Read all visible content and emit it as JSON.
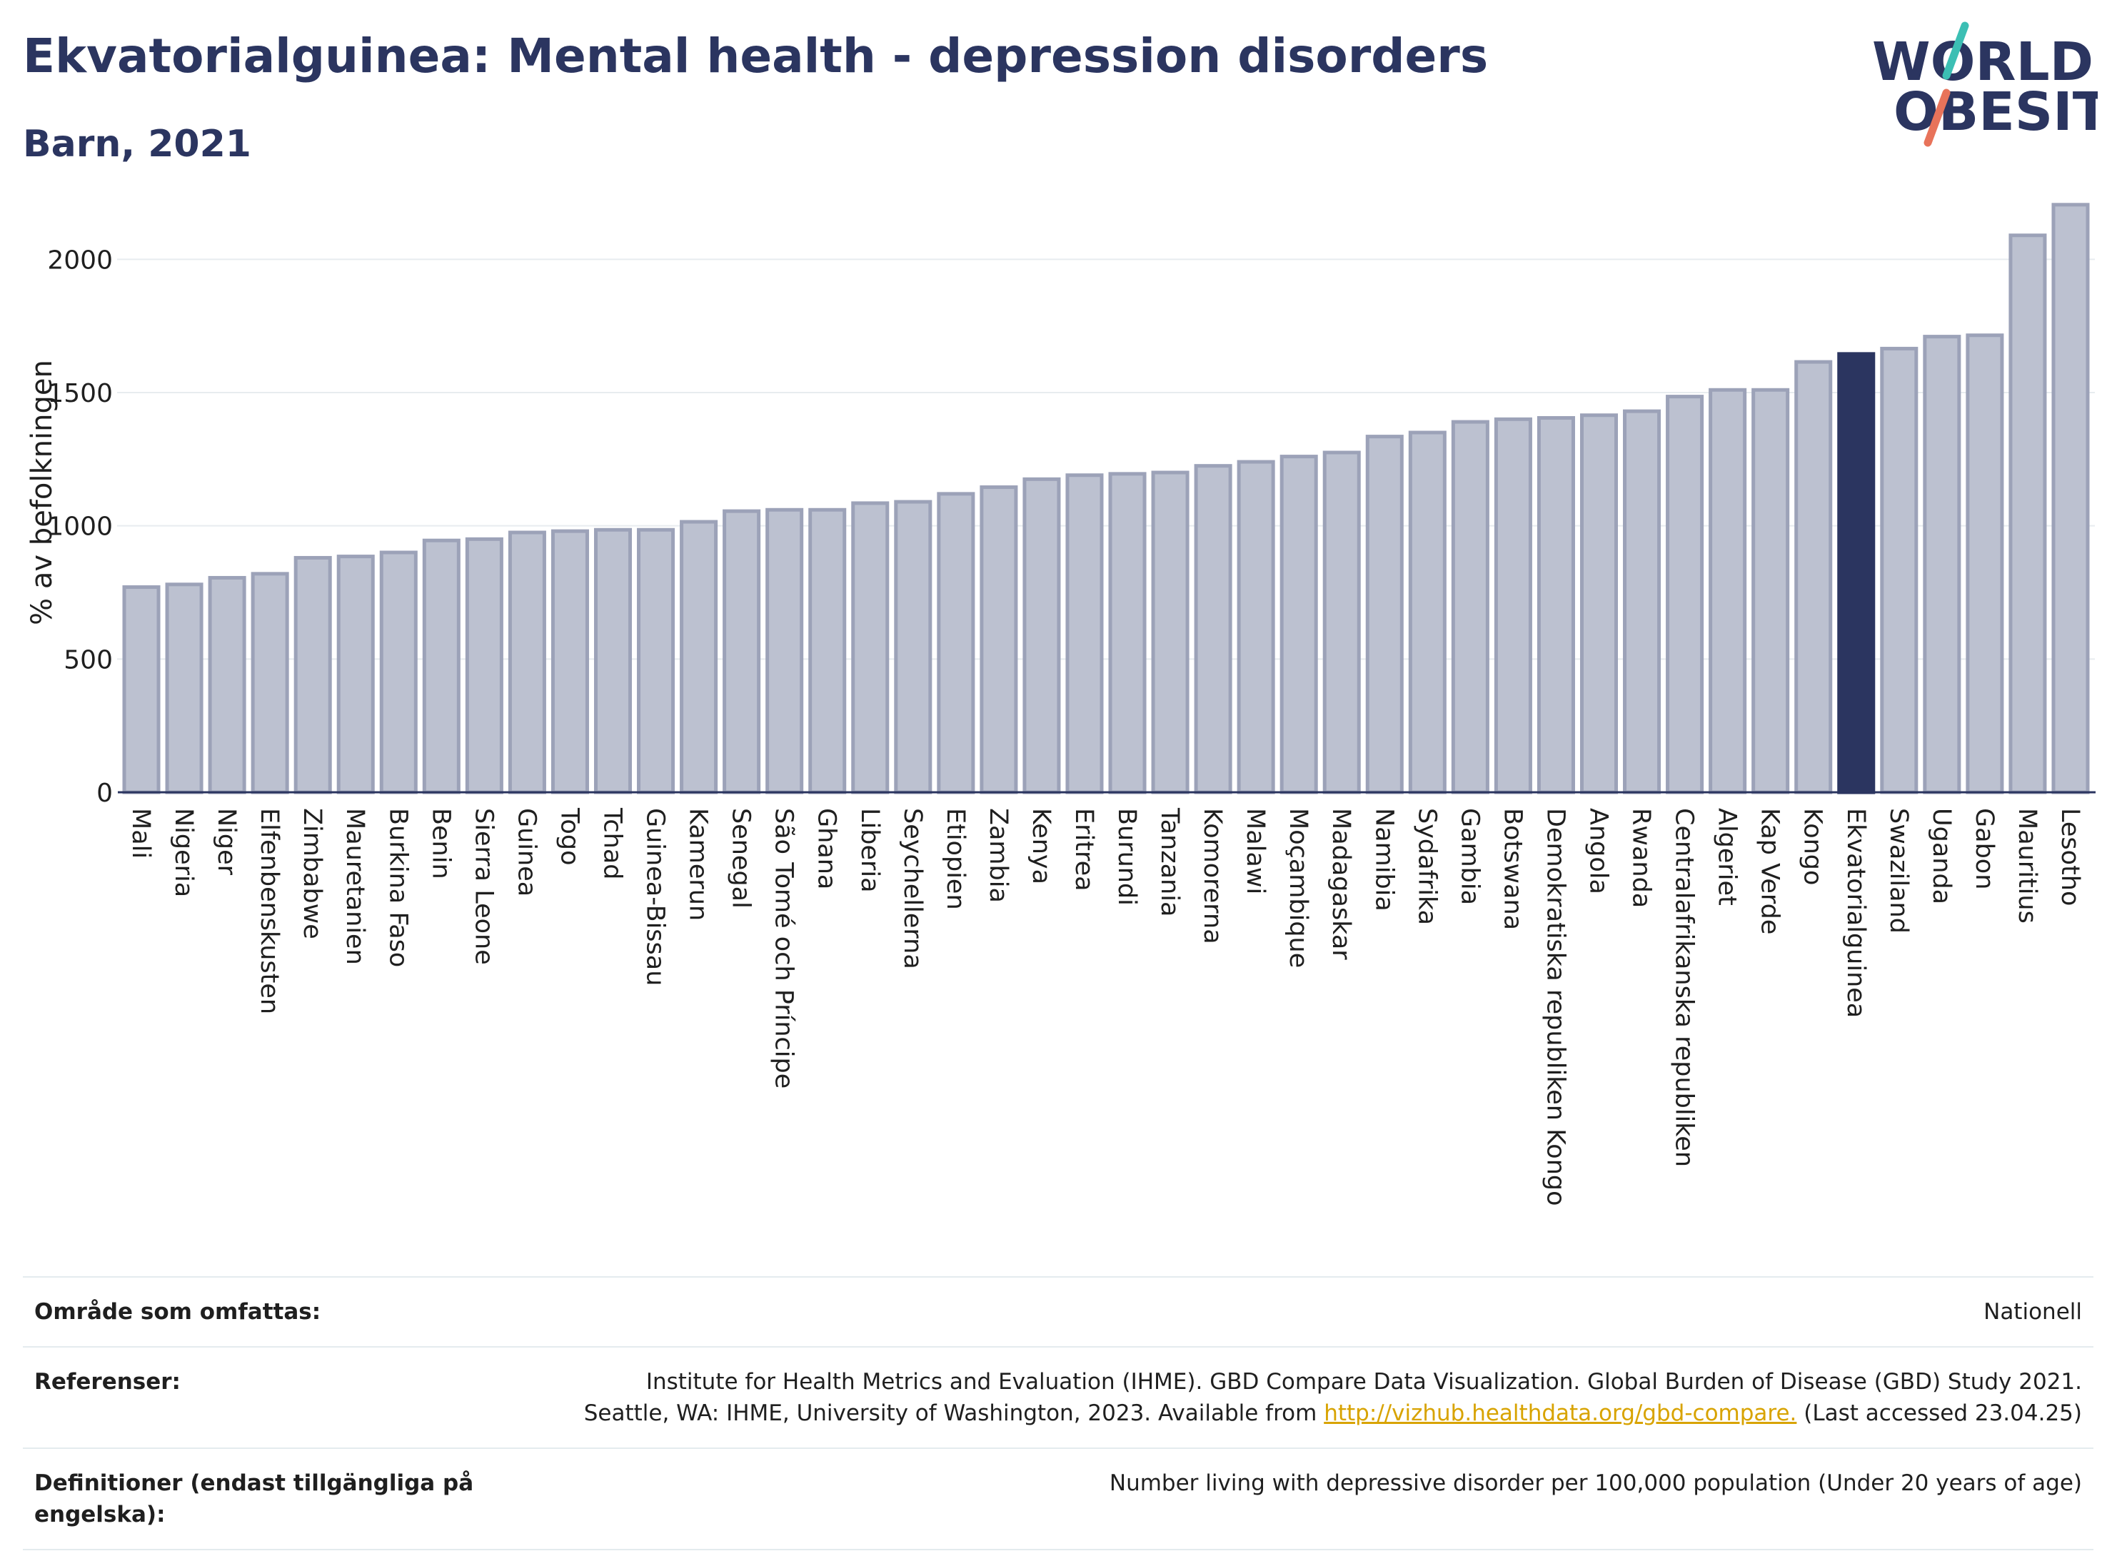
{
  "title": "Ekvatorialguinea: Mental health - depression disorders",
  "subtitle": "Barn, 2021",
  "logo": {
    "line1": "WORLD",
    "line2": "OBESITY",
    "icon": "world-obesity-logo"
  },
  "colors": {
    "highlight": "#2b3560",
    "bar": "#bcc1d0",
    "bar_border": "#9ca2b8",
    "grid": "#e8ecef",
    "link": "#d8a300"
  },
  "chart_data": {
    "type": "bar",
    "ylabel": "% av befolkningen",
    "xlabel": "",
    "ylim": [
      0,
      2250
    ],
    "yticks": [
      0,
      500,
      1000,
      1500,
      2000
    ],
    "grid": true,
    "highlight": "Ekvatorialguinea",
    "categories": [
      "Mali",
      "Nigeria",
      "Niger",
      "Elfenbenskusten",
      "Zimbabwe",
      "Mauretanien",
      "Burkina Faso",
      "Benin",
      "Sierra Leone",
      "Guinea",
      "Togo",
      "Tchad",
      "Guinea-Bissau",
      "Kamerun",
      "Senegal",
      "São Tomé och Príncipe",
      "Ghana",
      "Liberia",
      "Seychellerna",
      "Etiopien",
      "Zambia",
      "Kenya",
      "Eritrea",
      "Burundi",
      "Tanzania",
      "Komorerna",
      "Malawi",
      "Moçambique",
      "Madagaskar",
      "Namibia",
      "Sydafrika",
      "Gambia",
      "Botswana",
      "Demokratiska republiken Kongo",
      "Angola",
      "Rwanda",
      "Centralafrikanska republiken",
      "Algeriet",
      "Kap Verde",
      "Kongo",
      "Ekvatorialguinea",
      "Swaziland",
      "Uganda",
      "Gabon",
      "Mauritius",
      "Lesotho"
    ],
    "values": [
      770,
      780,
      805,
      820,
      880,
      885,
      900,
      945,
      950,
      975,
      980,
      985,
      985,
      1015,
      1055,
      1060,
      1060,
      1085,
      1090,
      1120,
      1145,
      1175,
      1190,
      1195,
      1200,
      1225,
      1240,
      1260,
      1275,
      1335,
      1350,
      1390,
      1400,
      1405,
      1415,
      1430,
      1485,
      1510,
      1510,
      1615,
      1645,
      1665,
      1710,
      1715,
      2090,
      2205
    ]
  },
  "footer": {
    "rows": [
      {
        "label": "Område som omfattas:",
        "value": "Nationell"
      },
      {
        "label": "Referenser:",
        "value_line1": "Institute for Health Metrics and Evaluation (IHME). GBD Compare Data Visualization. Global Burden of Disease (GBD) Study 2021.",
        "value_line2_pre": "Seattle, WA: IHME, University of Washington, 2023. Available from ",
        "link": "http://vizhub.healthdata.org/gbd-compare.",
        "value_line2_post": " (Last accessed 23.04.25)"
      },
      {
        "label": "Definitioner (endast tillgängliga på engelska):",
        "value": "Number living with depressive disorder per 100,000 population (Under 20 years of age)"
      }
    ]
  }
}
